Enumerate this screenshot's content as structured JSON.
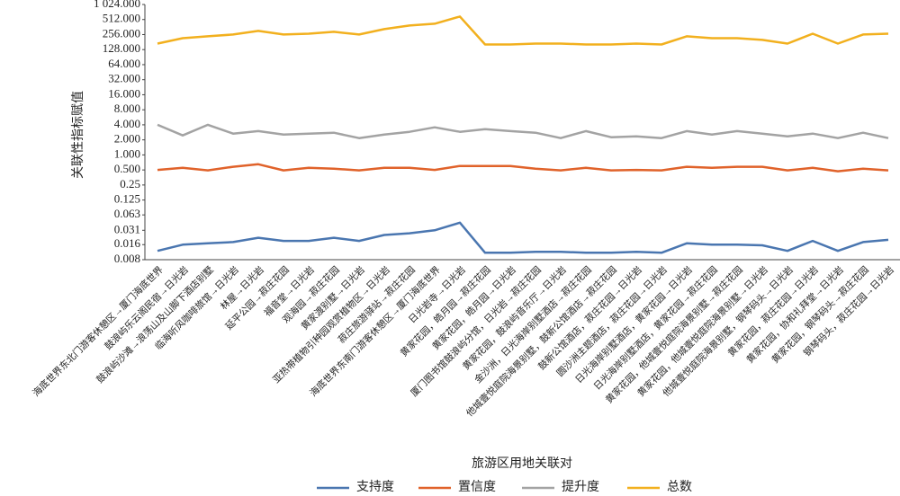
{
  "chart_data": {
    "type": "line",
    "y_label": "关联性指标赋值",
    "x_label": "旅游区用地关联对",
    "log_scale_y": true,
    "categories": [
      "海底世界东北门游客休憩区→厦门海底世界",
      "鼓浪屿乐云阁民宿→日光岩",
      "鼓浪屿沙滩→浪荡山及山脚下酒店别墅",
      "临海听风咖啡旅馆→日光岩",
      "林屋→日光岩",
      "延平公园→菽庄花园",
      "福音堂→日光岩",
      "观海园→菽庄花园",
      "黄家渡别墅→日光岩",
      "亚热带植物引种园观赏植物区→日光岩",
      "菽庄旅游驿站→菽庄花园",
      "海底世界东南门游客休憩区→厦门海底世界",
      "日光岩寺→日光岩",
      "黄家花园，皓月园→菽庄花园",
      "黄家花园，皓月园→日光岩",
      "厦门图书馆鼓浪屿分馆，日光岩→菽庄花园",
      "黄家花园，鼓浪屿音乐厅→日光岩",
      "金沙洲，日光海岸别墅酒店→菽庄花园",
      "他城壹悦庭院海景别墅，鼓新公馆酒店→菽庄花园",
      "鼓新公馆酒店，菽庄花园→日光岩",
      "圆沙洲主题酒店，菽庄花园→日光岩",
      "日光海岸别墅酒店，黄家花园→日光岩",
      "日光海岸别墅酒店，黄家花园→菽庄花园",
      "黄家花园，他城壹悦庭院海景别墅→菽庄花园",
      "黄家花园，他城壹悦庭院海景别墅→日光岩",
      "他城壹悦庭院海景别墅，钢琴码头→日光岩",
      "黄家花园，菽庄花园→日光岩",
      "黄家花园，协和礼拜堂→日光岩",
      "黄家花园，钢琴码头→菽庄花园",
      "钢琴码头，菽庄花园→日光岩"
    ],
    "series": [
      {
        "name": "支持度",
        "color": "#4a76b0",
        "values": [
          0.012,
          0.016,
          0.017,
          0.018,
          0.022,
          0.019,
          0.019,
          0.022,
          0.019,
          0.025,
          0.027,
          0.031,
          0.044,
          0.011,
          0.011,
          0.0115,
          0.0115,
          0.011,
          0.011,
          0.0115,
          0.011,
          0.017,
          0.016,
          0.016,
          0.0155,
          0.012,
          0.019,
          0.012,
          0.018,
          0.02
        ]
      },
      {
        "name": "置信度",
        "color": "#e0622a",
        "values": [
          0.5,
          0.55,
          0.49,
          0.58,
          0.65,
          0.49,
          0.55,
          0.53,
          0.49,
          0.55,
          0.55,
          0.5,
          0.6,
          0.6,
          0.6,
          0.53,
          0.49,
          0.55,
          0.49,
          0.5,
          0.49,
          0.58,
          0.55,
          0.58,
          0.58,
          0.49,
          0.55,
          0.47,
          0.53,
          0.49
        ]
      },
      {
        "name": "提升度",
        "color": "#a3a3a3",
        "values": [
          4.0,
          2.46,
          4.0,
          2.67,
          3.0,
          2.55,
          2.67,
          2.78,
          2.17,
          2.55,
          2.9,
          3.56,
          2.9,
          3.28,
          3.0,
          2.78,
          2.17,
          3.0,
          2.26,
          2.35,
          2.17,
          3.0,
          2.55,
          3.0,
          2.67,
          2.35,
          2.67,
          2.17,
          2.78,
          2.17
        ]
      },
      {
        "name": "总数",
        "color": "#f2b01e",
        "values": [
          169,
          217,
          236,
          257,
          303,
          257,
          267,
          291,
          257,
          329,
          389,
          423,
          589,
          162,
          162,
          169,
          169,
          162,
          162,
          169,
          162,
          236,
          217,
          217,
          200,
          169,
          267,
          169,
          257,
          267
        ]
      }
    ],
    "ylim": [
      0.008,
      1024
    ],
    "yticks": [
      0.008,
      0.016,
      0.031,
      0.063,
      0.125,
      0.25,
      {
        "value": 0.5,
        "label": "0.500"
      },
      {
        "value": 1,
        "label": "1.000"
      },
      {
        "value": 2,
        "label": "2.000"
      },
      {
        "value": 4,
        "label": "4.000"
      },
      {
        "value": 8,
        "label": "8.000"
      },
      {
        "value": 16,
        "label": "16.000"
      },
      {
        "value": 32,
        "label": "32.000"
      },
      {
        "value": 64,
        "label": "64.000"
      },
      {
        "value": 128,
        "label": "128.000"
      },
      {
        "value": 256,
        "label": "256.000"
      },
      {
        "value": 512,
        "label": "512.000"
      },
      {
        "value": 1024,
        "label": "1 024.000"
      }
    ]
  }
}
